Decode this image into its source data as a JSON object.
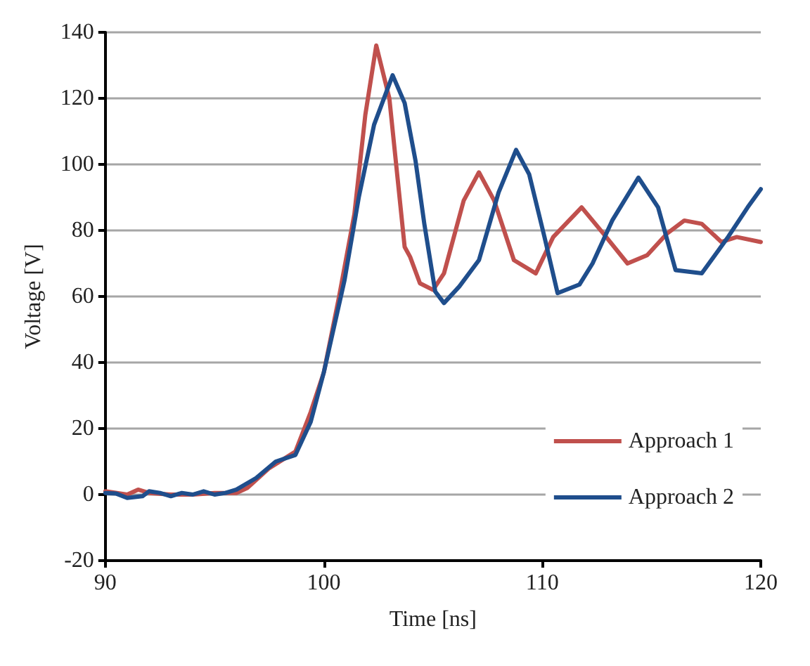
{
  "chart_data": {
    "type": "line",
    "xlabel": "Time [ns]",
    "ylabel": "Voltage [V]",
    "xlim": [
      90,
      120
    ],
    "xticks": [
      90,
      100,
      110,
      120
    ],
    "ylim": [
      -20,
      140
    ],
    "yticks": [
      -20,
      0,
      20,
      40,
      60,
      80,
      100,
      120,
      140
    ],
    "grid": "y",
    "legend": "bottom right",
    "marker": "none",
    "line_style": "solid",
    "series": [
      {
        "name": "Approach 1",
        "color": "#c0504d",
        "x": [
          90,
          91,
          91.5,
          92,
          93,
          94,
          95,
          96,
          96.5,
          97.5,
          98.7,
          99.4,
          100,
          100.7,
          101.4,
          101.9,
          102.4,
          103,
          103.7,
          103.95,
          104.4,
          105,
          105.5,
          106.4,
          107.1,
          107.8,
          108.7,
          109.7,
          110.5,
          111.8,
          112.8,
          113.9,
          114.8,
          115.7,
          116.5,
          117.3,
          118.2,
          118.9,
          120
        ],
        "values": [
          1,
          0,
          1.5,
          0.5,
          0,
          0,
          0.5,
          0.5,
          2,
          8,
          13,
          25,
          37,
          60,
          85,
          115,
          136,
          120,
          75,
          72,
          64,
          62,
          67,
          89,
          97.6,
          89,
          71,
          67,
          78,
          87,
          79,
          70,
          72.5,
          79,
          83,
          82,
          76.5,
          78,
          76.5
        ]
      },
      {
        "name": "Approach 2",
        "color": "#1f4e8c",
        "x": [
          90,
          90.5,
          91,
          91.7,
          92,
          92.5,
          93,
          93.5,
          94,
          94.5,
          95,
          95.5,
          96,
          96.9,
          97.8,
          98.7,
          99.4,
          100,
          100.95,
          101.6,
          102.3,
          103.15,
          103.7,
          104.2,
          104.6,
          105.1,
          105.5,
          106.2,
          107.1,
          108,
          108.8,
          109.4,
          110.1,
          110.7,
          111.7,
          112.3,
          113.2,
          114.4,
          115.3,
          116.1,
          117.3,
          118.5,
          119.4,
          120
        ],
        "values": [
          0.5,
          0.3,
          -1,
          -0.5,
          1,
          0.5,
          -0.5,
          0.5,
          0,
          1,
          0,
          0.5,
          1.5,
          5,
          10,
          12,
          22,
          37,
          65,
          90,
          112,
          127,
          118.6,
          101,
          82,
          61.5,
          58,
          63,
          71,
          91.5,
          104.4,
          97,
          78,
          61,
          63.6,
          70,
          83,
          96,
          87,
          68,
          67,
          78,
          87,
          92.5
        ]
      }
    ]
  }
}
